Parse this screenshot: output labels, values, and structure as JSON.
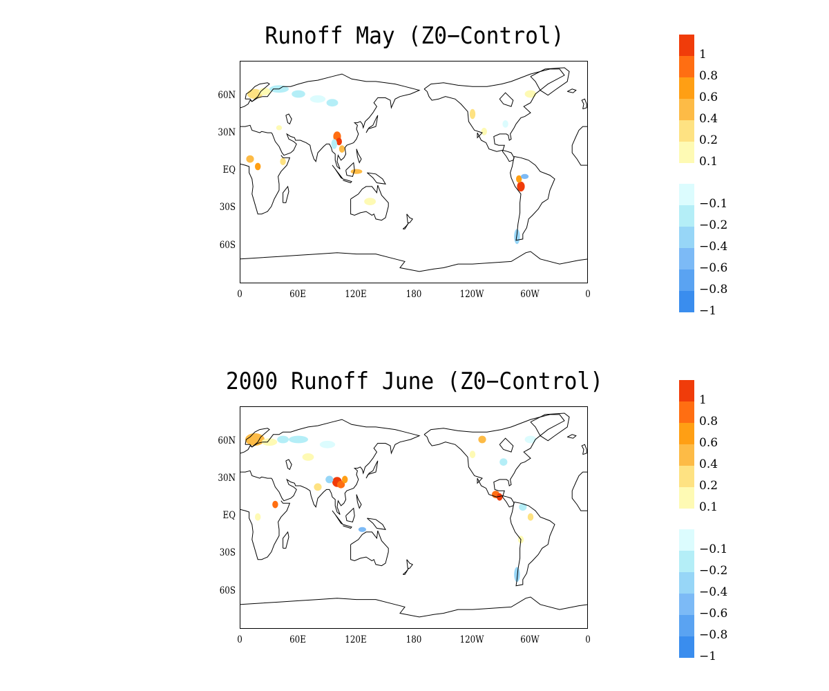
{
  "panels": [
    {
      "title": "Runoff May (Z0−Control)",
      "map": {
        "type": "geographic-anomaly-map",
        "projection": "cylindrical equidistant, centered 180",
        "lat_labels": [
          "60N",
          "30N",
          "EQ",
          "30S",
          "60S"
        ],
        "lon_labels": [
          "0",
          "60E",
          "120E",
          "180",
          "120W",
          "60W",
          "0"
        ]
      }
    },
    {
      "title": "2000 Runoff June (Z0−Control)",
      "map": {
        "type": "geographic-anomaly-map",
        "projection": "cylindrical equidistant, centered 180",
        "lat_labels": [
          "60N",
          "30N",
          "EQ",
          "30S",
          "60S"
        ],
        "lon_labels": [
          "0",
          "60E",
          "120E",
          "180",
          "120W",
          "60W",
          "0"
        ]
      }
    }
  ],
  "colorbar": {
    "labels": [
      "1",
      "0.8",
      "0.6",
      "0.4",
      "0.2",
      "0.1",
      "−0.1",
      "−0.2",
      "−0.4",
      "−0.6",
      "−0.8",
      "−1"
    ],
    "colors": [
      "#f03c0a",
      "#ff6e12",
      "#ff9f14",
      "#fdbb46",
      "#fee282",
      "#fefab4",
      "#ffffff",
      "#dcfcfe",
      "#b4eef7",
      "#97d6f7",
      "#7cbaf6",
      "#5aa3f2",
      "#3a8dee"
    ]
  }
}
